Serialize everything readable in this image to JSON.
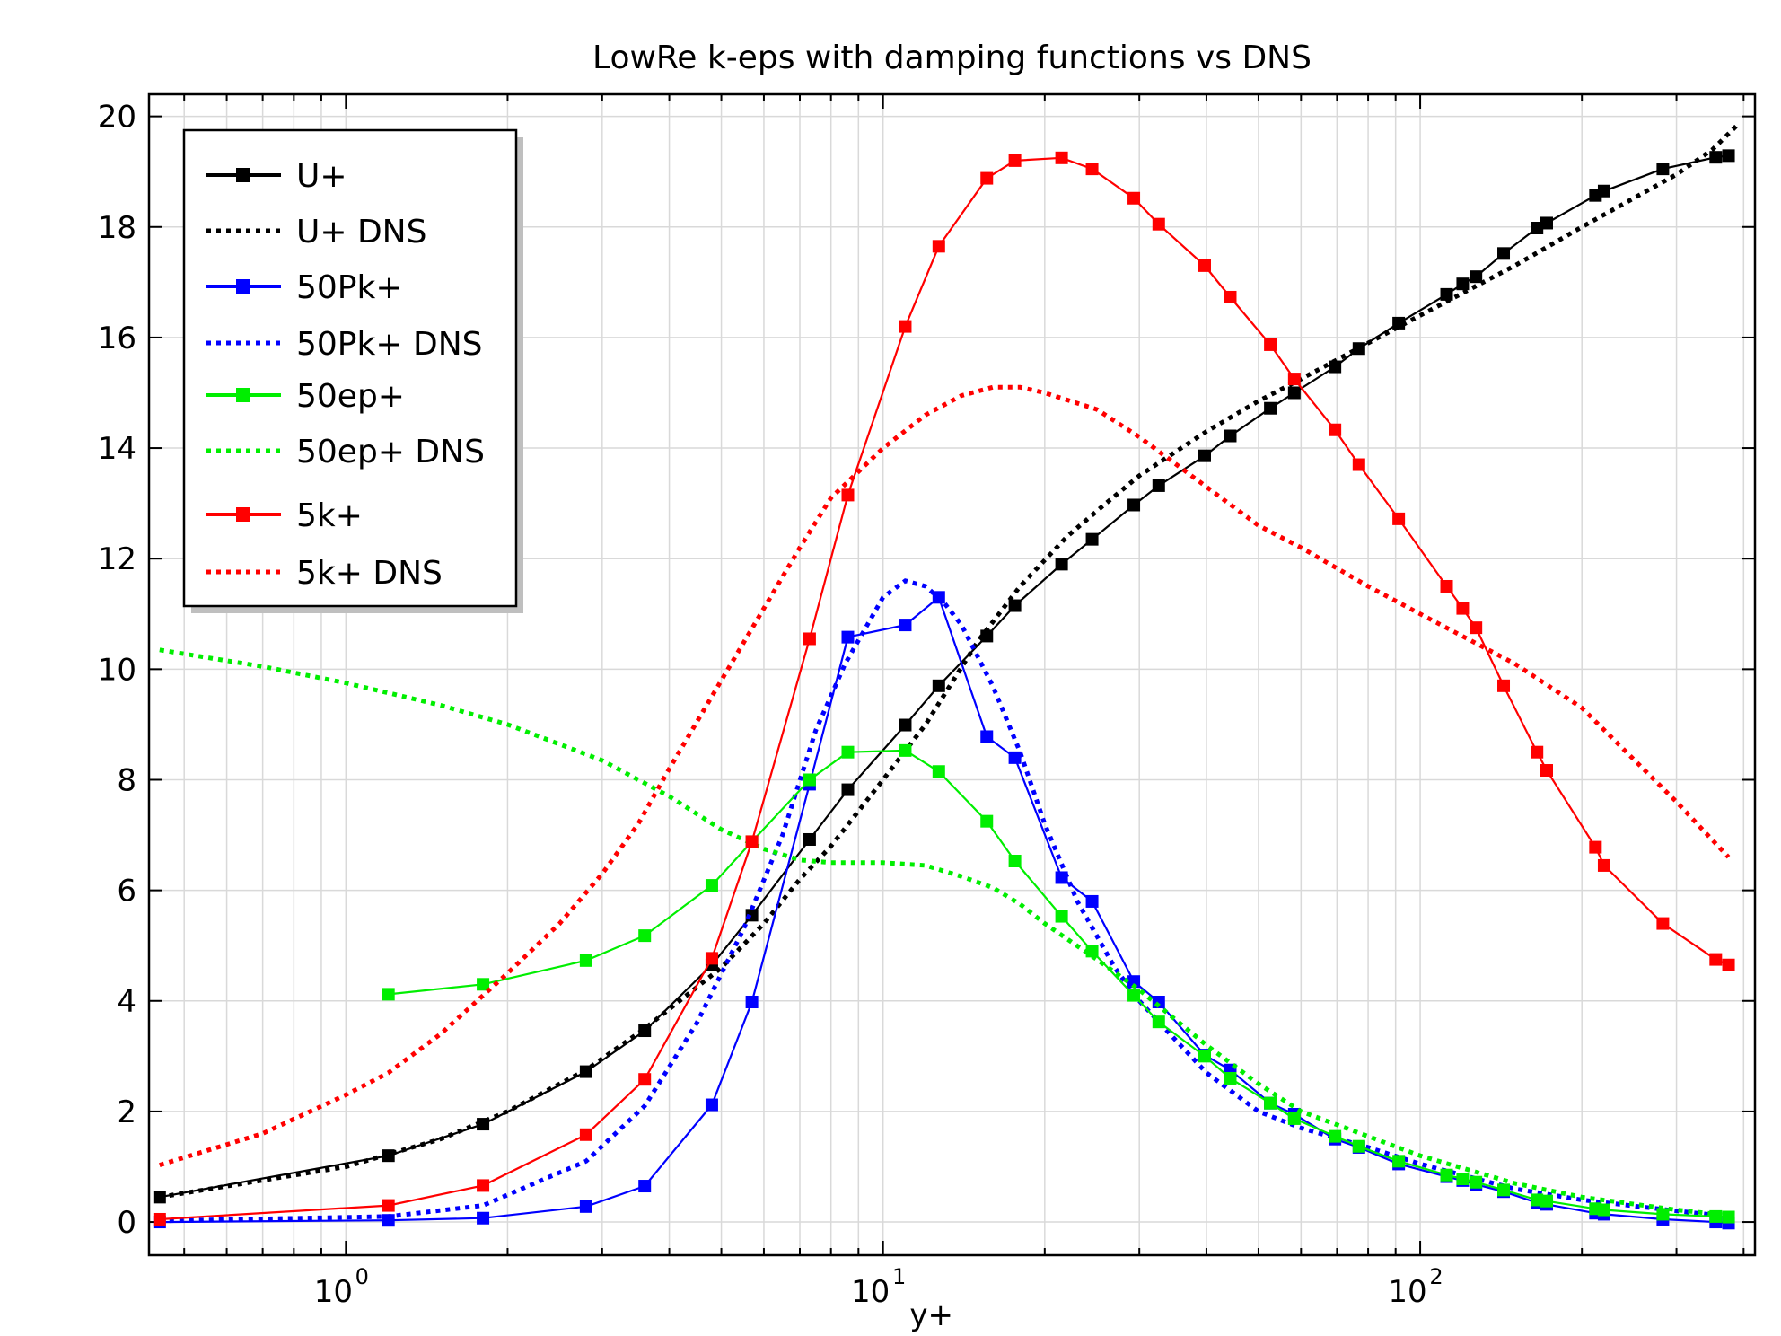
{
  "chart_data": {
    "type": "line",
    "title": "LowRe k-eps with damping functions vs DNS",
    "xlabel": "y+",
    "ylabel": "",
    "xscale": "log",
    "xlim": [
      0.43,
      420
    ],
    "ylim": [
      -0.6,
      20.4
    ],
    "grid": true,
    "legend_position": "top-left",
    "x_ticks": [
      {
        "value": 1,
        "base": "10",
        "exp": "0"
      },
      {
        "value": 10,
        "base": "10",
        "exp": "1"
      },
      {
        "value": 100,
        "base": "10",
        "exp": "2"
      }
    ],
    "y_ticks": [
      "0",
      "2",
      "4",
      "6",
      "8",
      "10",
      "12",
      "14",
      "16",
      "18",
      "20"
    ],
    "series": [
      {
        "name": "U+",
        "color": "#000000",
        "style": "solid-markers",
        "x": [
          0.45,
          1.2,
          1.8,
          2.8,
          3.6,
          4.8,
          5.7,
          7.3,
          8.6,
          11,
          12.7,
          15.6,
          17.6,
          21.5,
          24.5,
          29.3,
          32.6,
          39.7,
          44.3,
          52.6,
          58.3,
          69.4,
          76.9,
          91.2,
          112,
          120,
          127,
          143,
          165,
          172,
          212,
          220,
          283,
          355,
          375
        ],
        "y": [
          0.45,
          1.2,
          1.77,
          2.72,
          3.46,
          4.65,
          5.55,
          6.92,
          7.82,
          8.99,
          9.7,
          10.6,
          11.15,
          11.9,
          12.35,
          12.97,
          13.32,
          13.86,
          14.22,
          14.72,
          15.0,
          15.47,
          15.8,
          16.26,
          16.78,
          16.97,
          17.1,
          17.52,
          17.98,
          18.07,
          18.57,
          18.65,
          19.05,
          19.26,
          19.29
        ]
      },
      {
        "name": "U+ DNS",
        "color": "#000000",
        "style": "dotted",
        "x": [
          0.45,
          1.0,
          1.5,
          2.0,
          2.8,
          3.6,
          5.0,
          6.0,
          7.0,
          8.0,
          10.0,
          12.0,
          15.0,
          18.0,
          22.0,
          26.0,
          30.0,
          40.0,
          50.0,
          60.0,
          80.0,
          100.0,
          150.0,
          200.0,
          300.0,
          350.0,
          390.0
        ],
        "y": [
          0.45,
          1.0,
          1.5,
          2.0,
          2.75,
          3.5,
          4.6,
          5.4,
          6.2,
          6.8,
          8.0,
          9.0,
          10.5,
          11.5,
          12.4,
          13.0,
          13.5,
          14.3,
          14.85,
          15.25,
          15.9,
          16.4,
          17.3,
          18.0,
          18.95,
          19.4,
          19.85
        ]
      },
      {
        "name": "50Pk+",
        "color": "#0000ff",
        "style": "solid-markers",
        "x": [
          0.45,
          1.2,
          1.8,
          2.8,
          3.6,
          4.8,
          5.7,
          7.3,
          8.6,
          11,
          12.7,
          15.6,
          17.6,
          21.5,
          24.5,
          29.3,
          32.6,
          39.7,
          44.3,
          52.6,
          58.3,
          69.4,
          76.9,
          91.2,
          112,
          120,
          127,
          143,
          165,
          172,
          212,
          220,
          283,
          355,
          375
        ],
        "y": [
          0.0,
          0.03,
          0.07,
          0.28,
          0.65,
          2.12,
          3.98,
          7.92,
          10.58,
          10.8,
          11.3,
          8.78,
          8.4,
          6.23,
          5.8,
          4.35,
          3.98,
          3.02,
          2.75,
          2.15,
          1.95,
          1.5,
          1.35,
          1.05,
          0.82,
          0.75,
          0.68,
          0.55,
          0.35,
          0.32,
          0.16,
          0.14,
          0.05,
          0.0,
          -0.02
        ]
      },
      {
        "name": "50Pk+ DNS",
        "color": "#0000ff",
        "style": "dotted",
        "x": [
          0.45,
          1.2,
          1.8,
          2.8,
          3.6,
          4.5,
          5.5,
          6.5,
          7.5,
          8.5,
          10.0,
          11.0,
          12.0,
          13.0,
          14.0,
          16.0,
          18.0,
          20.0,
          23.0,
          27.0,
          30.0,
          35.0,
          40.0,
          50.0,
          60.0,
          80.0,
          100.0,
          150.0,
          200.0,
          300.0,
          375.0
        ],
        "y": [
          0.02,
          0.1,
          0.3,
          1.1,
          2.1,
          3.6,
          5.3,
          7.0,
          8.9,
          10.1,
          11.3,
          11.6,
          11.5,
          11.2,
          10.8,
          9.7,
          8.5,
          7.2,
          5.8,
          4.6,
          4.0,
          3.3,
          2.7,
          2.0,
          1.7,
          1.35,
          1.05,
          0.6,
          0.4,
          0.2,
          0.1
        ]
      },
      {
        "name": "50ep+",
        "color": "#00ee00",
        "style": "solid-markers",
        "x": [
          1.2,
          1.8,
          2.8,
          3.6,
          4.8,
          5.7,
          7.3,
          8.6,
          11,
          12.7,
          15.6,
          17.6,
          21.5,
          24.5,
          29.3,
          32.6,
          39.7,
          44.3,
          52.6,
          58.3,
          69.4,
          76.9,
          91.2,
          112,
          120,
          127,
          143,
          165,
          172,
          212,
          220,
          283,
          355,
          375
        ],
        "y": [
          4.12,
          4.3,
          4.73,
          5.18,
          6.09,
          6.88,
          8.0,
          8.5,
          8.53,
          8.15,
          7.25,
          6.53,
          5.53,
          4.9,
          4.1,
          3.62,
          3.0,
          2.6,
          2.15,
          1.87,
          1.55,
          1.37,
          1.1,
          0.85,
          0.78,
          0.72,
          0.58,
          0.4,
          0.38,
          0.24,
          0.22,
          0.14,
          0.1,
          0.09
        ]
      },
      {
        "name": "50ep+ DNS",
        "color": "#00ee00",
        "style": "dotted",
        "x": [
          0.45,
          0.7,
          1.0,
          1.5,
          2.0,
          3.0,
          4.0,
          5.0,
          6.0,
          7.0,
          8.0,
          10.0,
          12.0,
          14.0,
          16.0,
          18.0,
          20.0,
          25.0,
          30.0,
          40.0,
          50.0,
          60.0,
          80.0,
          100.0,
          150.0,
          200.0,
          300.0,
          375.0
        ],
        "y": [
          10.35,
          10.05,
          9.75,
          9.35,
          9.0,
          8.35,
          7.7,
          7.1,
          6.75,
          6.55,
          6.5,
          6.5,
          6.45,
          6.25,
          6.05,
          5.75,
          5.4,
          4.75,
          4.2,
          3.2,
          2.5,
          2.0,
          1.55,
          1.2,
          0.7,
          0.45,
          0.22,
          0.12
        ]
      },
      {
        "name": "5k+",
        "color": "#ff0000",
        "style": "solid-markers",
        "x": [
          0.45,
          1.2,
          1.8,
          2.8,
          3.6,
          4.8,
          5.7,
          7.3,
          8.6,
          11,
          12.7,
          15.6,
          17.6,
          21.5,
          24.5,
          29.3,
          32.6,
          39.7,
          44.3,
          52.6,
          58.3,
          69.4,
          76.9,
          91.2,
          112,
          120,
          127,
          143,
          165,
          172,
          212,
          220,
          283,
          355,
          375
        ],
        "y": [
          0.05,
          0.3,
          0.66,
          1.58,
          2.58,
          4.77,
          6.88,
          10.55,
          13.15,
          16.2,
          17.65,
          18.88,
          19.2,
          19.25,
          19.05,
          18.52,
          18.05,
          17.3,
          16.73,
          15.87,
          15.25,
          14.33,
          13.7,
          12.72,
          11.5,
          11.1,
          10.75,
          9.7,
          8.5,
          8.17,
          6.78,
          6.45,
          5.4,
          4.75,
          4.65
        ]
      },
      {
        "name": "5k+ DNS",
        "color": "#ff0000",
        "style": "dotted",
        "x": [
          0.45,
          0.7,
          1.0,
          1.2,
          1.5,
          2.0,
          2.5,
          3.0,
          3.5,
          4.0,
          5.0,
          6.0,
          7.0,
          8.0,
          10.0,
          12.0,
          14.0,
          16.0,
          18.0,
          20.0,
          25.0,
          30.0,
          40.0,
          50.0,
          60.0,
          80.0,
          100.0,
          150.0,
          200.0,
          300.0,
          375.0
        ],
        "y": [
          1.03,
          1.6,
          2.3,
          2.7,
          3.4,
          4.5,
          5.4,
          6.3,
          7.2,
          8.2,
          9.8,
          11.1,
          12.2,
          13.1,
          14.0,
          14.6,
          14.95,
          15.1,
          15.1,
          15.0,
          14.7,
          14.2,
          13.3,
          12.6,
          12.2,
          11.5,
          11.0,
          10.1,
          9.3,
          7.6,
          6.6
        ]
      }
    ]
  }
}
